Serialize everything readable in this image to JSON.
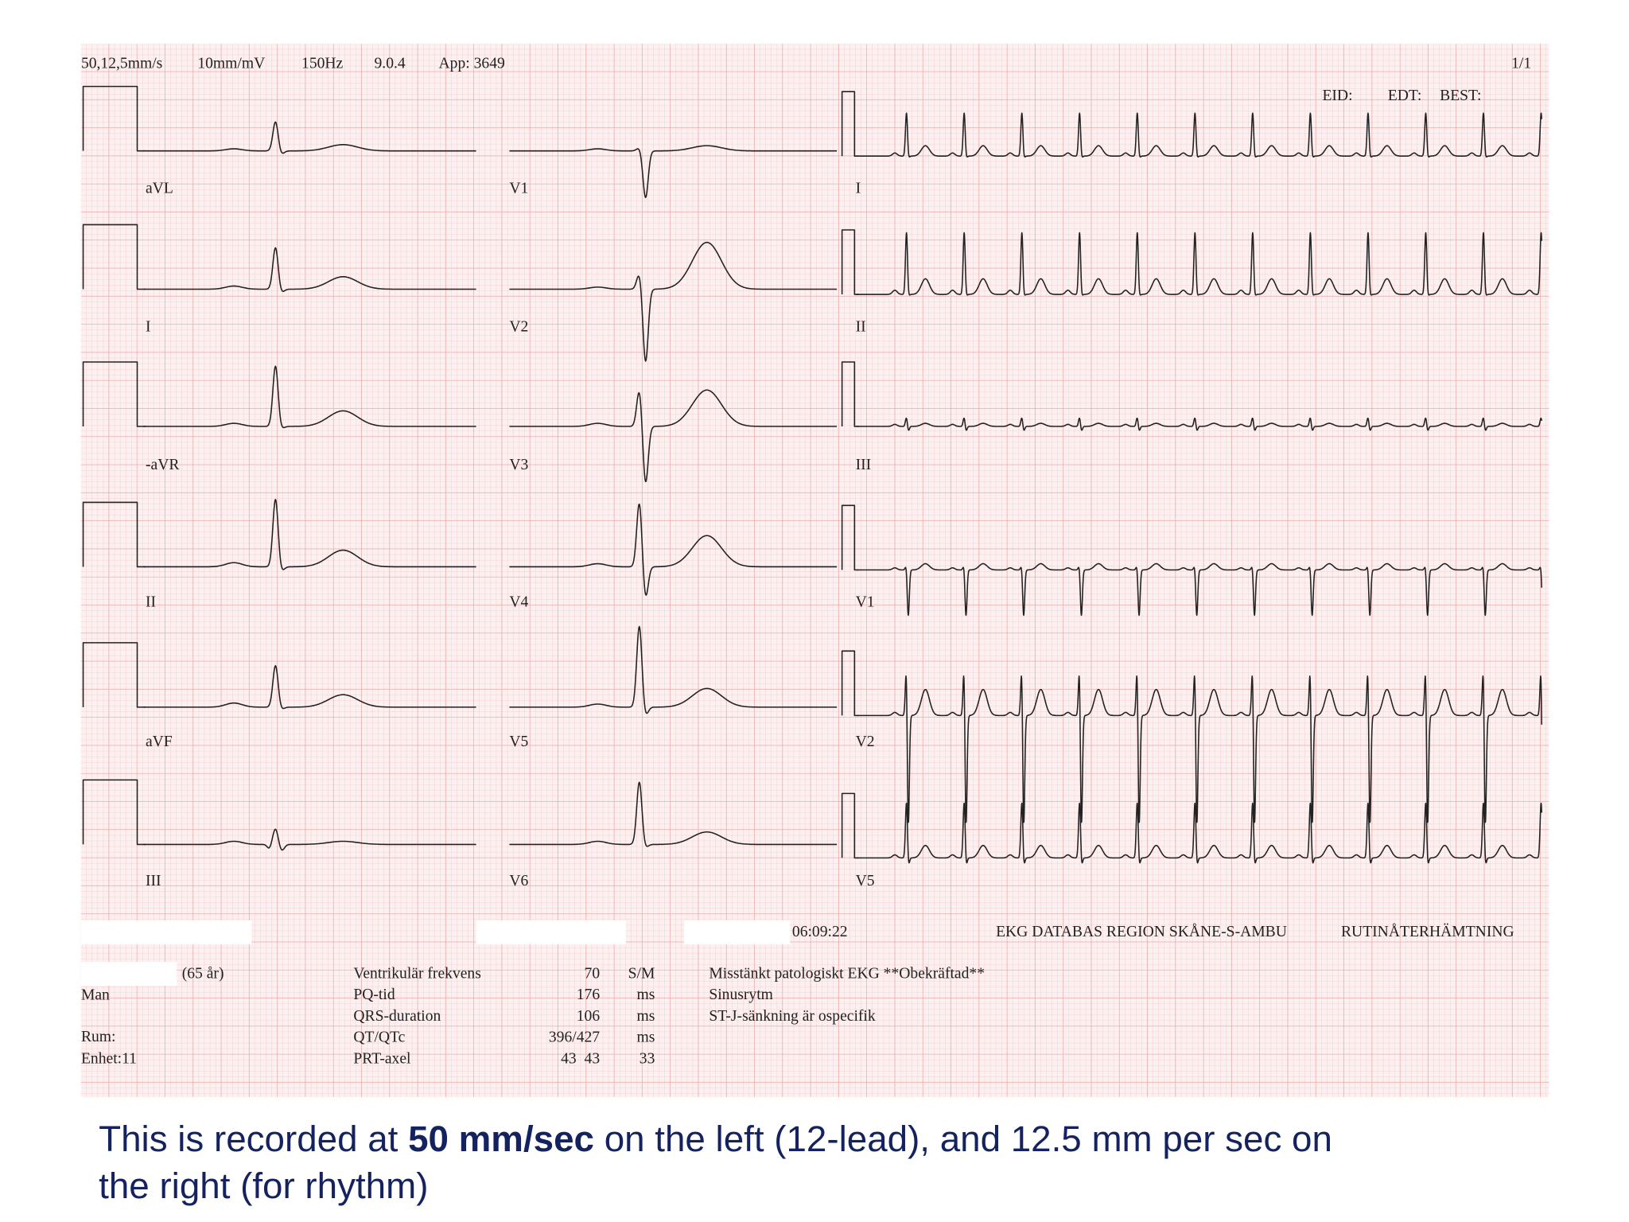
{
  "header": {
    "settings": [
      "50,12,5mm/s",
      "10mm/mV",
      "150Hz",
      "9.0.4",
      "App: 3649"
    ],
    "page": "1/1",
    "ids": [
      "EID:",
      "EDT:",
      "BEST:"
    ]
  },
  "leads": [
    [
      "aVL",
      "I",
      "-aVR",
      "II",
      "aVF",
      "III"
    ],
    [
      "V1",
      "V2",
      "V3",
      "V4",
      "V5",
      "V6"
    ],
    [
      "I",
      "II",
      "III",
      "V1",
      "V2",
      "V5"
    ]
  ],
  "footer": {
    "time": "06:09:22",
    "database": "EKG DATABAS REGION SKÅNE-S-AMBU",
    "mode": "RUTINÅTERHÄMTNING"
  },
  "patient": {
    "age": "(65 år)",
    "sex": "Man",
    "room": "Rum:",
    "unit": "Enhet:11"
  },
  "measurements": [
    [
      "Ventrikulär frekvens",
      "70",
      "S/M"
    ],
    [
      "PQ-tid",
      "176",
      "ms"
    ],
    [
      "QRS-duration",
      "106",
      "ms"
    ],
    [
      "QT/QTc",
      "396/427",
      "ms"
    ],
    [
      "PRT-axel",
      "43  43",
      "33"
    ]
  ],
  "interpretation": [
    "Misstänkt patologiskt EKG **Obekräftad**",
    "Sinusrytm",
    "ST-J-sänkning är ospecifik"
  ],
  "caption": {
    "lines": [
      [
        "This is recorded at ",
        "50 mm/sec",
        " on the left (12-lead), and 12.5 mm per sec on"
      ],
      [
        "the right (for rhythm)"
      ]
    ]
  }
}
